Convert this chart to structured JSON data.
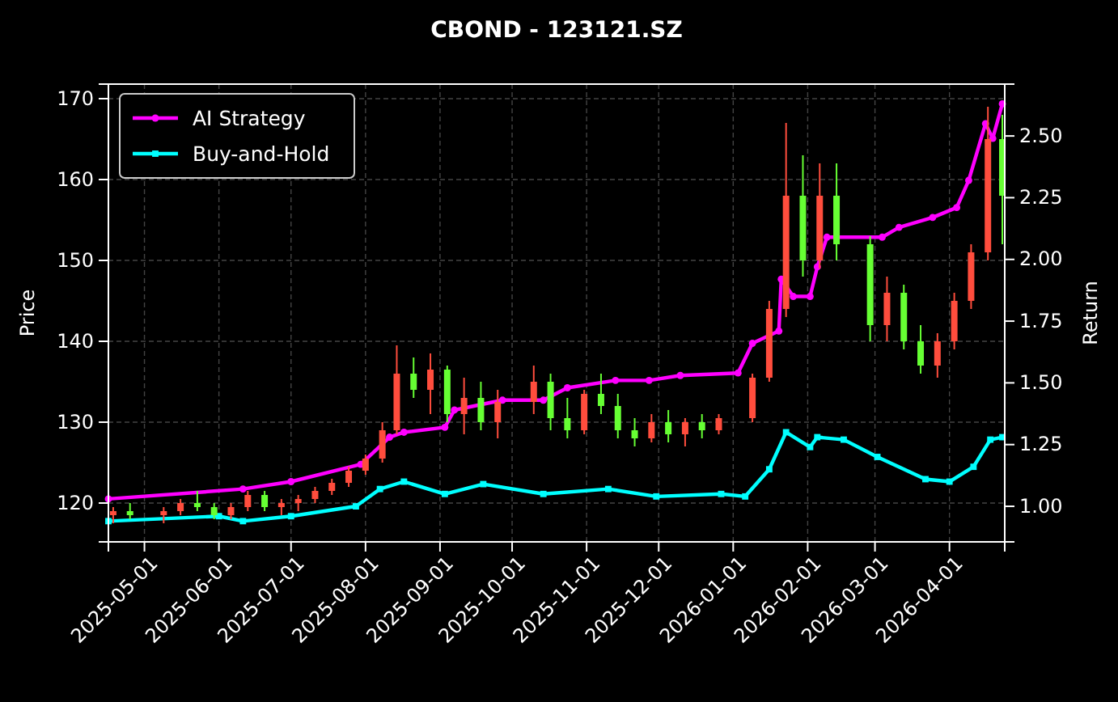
{
  "chart_data": {
    "type": "candlestick",
    "title": "CBOND - 123121.SZ",
    "ylabel": "Price",
    "y2label": "Return",
    "x": [
      "2025-04-18",
      "2025-04-25",
      "2025-05-09",
      "2025-05-16",
      "2025-05-23",
      "2025-05-30",
      "2025-06-06",
      "2025-06-13",
      "2025-06-20",
      "2025-06-27",
      "2025-07-04",
      "2025-07-11",
      "2025-07-18",
      "2025-07-25",
      "2025-08-01",
      "2025-08-08",
      "2025-08-14",
      "2025-08-21",
      "2025-08-28",
      "2025-09-04",
      "2025-09-11",
      "2025-09-18",
      "2025-09-25",
      "2025-10-10",
      "2025-10-17",
      "2025-10-24",
      "2025-10-31",
      "2025-11-07",
      "2025-11-14",
      "2025-11-21",
      "2025-11-28",
      "2025-12-05",
      "2025-12-12",
      "2025-12-19",
      "2025-12-26",
      "2026-01-09",
      "2026-01-16",
      "2026-01-23",
      "2026-01-30",
      "2026-02-06",
      "2026-02-13",
      "2026-02-27",
      "2026-03-06",
      "2026-03-13",
      "2026-03-20",
      "2026-03-27",
      "2026-04-03",
      "2026-04-10",
      "2026-04-17",
      "2026-04-23"
    ],
    "ohlc": [
      [
        118.5,
        119.5,
        117.5,
        119
      ],
      [
        119,
        120,
        118,
        118.5
      ],
      [
        118.5,
        119.5,
        117.5,
        119
      ],
      [
        119,
        120.5,
        118.5,
        120
      ],
      [
        120,
        121.5,
        119,
        119.5
      ],
      [
        119.5,
        120,
        118,
        118.5
      ],
      [
        118.5,
        120,
        118,
        119.5
      ],
      [
        119.5,
        121.5,
        119,
        121
      ],
      [
        121,
        121.5,
        119,
        119.5
      ],
      [
        119.5,
        120.5,
        118.5,
        120
      ],
      [
        120,
        121,
        119,
        120.5
      ],
      [
        120.5,
        122,
        120,
        121.5
      ],
      [
        121.5,
        123,
        121,
        122.5
      ],
      [
        122.5,
        124.5,
        122,
        124
      ],
      [
        124,
        126,
        123.5,
        125.5
      ],
      [
        125.5,
        130,
        125,
        129
      ],
      [
        129,
        139.5,
        128.5,
        136
      ],
      [
        136,
        138,
        133,
        134
      ],
      [
        134,
        138.5,
        131,
        136.5
      ],
      [
        136.5,
        137,
        130,
        131
      ],
      [
        131,
        135.5,
        128.5,
        133
      ],
      [
        133,
        135,
        129,
        130
      ],
      [
        130,
        134,
        128,
        132.5
      ],
      [
        132.5,
        137,
        131,
        135
      ],
      [
        135,
        136,
        129,
        130.5
      ],
      [
        130.5,
        133,
        128,
        129
      ],
      [
        129,
        134,
        128.5,
        133.5
      ],
      [
        133.5,
        136,
        131,
        132
      ],
      [
        132,
        133.5,
        128,
        129
      ],
      [
        129,
        130.5,
        127,
        128
      ],
      [
        128,
        131,
        127.5,
        130
      ],
      [
        130,
        131.5,
        127.5,
        128.5
      ],
      [
        128.5,
        130.5,
        127,
        130
      ],
      [
        130,
        131,
        128,
        129
      ],
      [
        129,
        131,
        128.5,
        130.5
      ],
      [
        130.5,
        136,
        130,
        135.5
      ],
      [
        135.5,
        145,
        135,
        144
      ],
      [
        144,
        167,
        143,
        158
      ],
      [
        158,
        163,
        148,
        150
      ],
      [
        150,
        162,
        149,
        158
      ],
      [
        158,
        162,
        150,
        152
      ],
      [
        152,
        153,
        140,
        142
      ],
      [
        142,
        148,
        140,
        146
      ],
      [
        146,
        147,
        139,
        140
      ],
      [
        140,
        142,
        136,
        137
      ],
      [
        137,
        141,
        135.5,
        140
      ],
      [
        140,
        146,
        139,
        145
      ],
      [
        145,
        152,
        144,
        151
      ],
      [
        151,
        169,
        150,
        165
      ],
      [
        165,
        168,
        152,
        158
      ]
    ],
    "series": [
      {
        "name": "AI Strategy",
        "type": "line",
        "axis": "y2",
        "color": "#ff00ff",
        "marker": "circle",
        "x": [
          "2025-04-16",
          "2025-06-11",
          "2025-07-01",
          "2025-07-30",
          "2025-08-11",
          "2025-08-17",
          "2025-09-03",
          "2025-09-07",
          "2025-09-27",
          "2025-10-14",
          "2025-10-24",
          "2025-11-13",
          "2025-11-27",
          "2025-12-10",
          "2026-01-03",
          "2026-01-09",
          "2026-01-20",
          "2026-01-21",
          "2026-01-26",
          "2026-02-02",
          "2026-02-05",
          "2026-02-09",
          "2026-03-04",
          "2026-03-11",
          "2026-03-25",
          "2026-04-04",
          "2026-04-09",
          "2026-04-16",
          "2026-04-19",
          "2026-04-23"
        ],
        "values": [
          1.03,
          1.07,
          1.1,
          1.17,
          1.28,
          1.3,
          1.32,
          1.39,
          1.43,
          1.43,
          1.48,
          1.51,
          1.51,
          1.53,
          1.54,
          1.66,
          1.71,
          1.92,
          1.85,
          1.85,
          1.97,
          2.09,
          2.09,
          2.13,
          2.17,
          2.21,
          2.32,
          2.55,
          2.49,
          2.63
        ]
      },
      {
        "name": "Buy-and-Hold",
        "type": "line",
        "axis": "y2",
        "color": "#00ffff",
        "marker": "square",
        "x": [
          "2025-04-16",
          "2025-06-01",
          "2025-06-11",
          "2025-07-01",
          "2025-07-28",
          "2025-08-07",
          "2025-08-17",
          "2025-09-03",
          "2025-09-19",
          "2025-10-14",
          "2025-11-10",
          "2025-11-30",
          "2025-12-27",
          "2026-01-06",
          "2026-01-16",
          "2026-01-23",
          "2026-02-02",
          "2026-02-05",
          "2026-02-16",
          "2026-03-02",
          "2026-03-22",
          "2026-04-01",
          "2026-04-11",
          "2026-04-18",
          "2026-04-23"
        ],
        "values": [
          0.94,
          0.96,
          0.94,
          0.96,
          1.0,
          1.07,
          1.1,
          1.05,
          1.09,
          1.05,
          1.07,
          1.04,
          1.05,
          1.04,
          1.15,
          1.3,
          1.24,
          1.28,
          1.27,
          1.2,
          1.11,
          1.1,
          1.16,
          1.27,
          1.28
        ]
      }
    ],
    "xlim": [
      "2025-04-16",
      "2026-04-24"
    ],
    "xticks": [
      {
        "value": "2025-05-01",
        "label": "2025-05-01"
      },
      {
        "value": "2025-06-01",
        "label": "2025-06-01"
      },
      {
        "value": "2025-07-01",
        "label": "2025-07-01"
      },
      {
        "value": "2025-08-01",
        "label": "2025-08-01"
      },
      {
        "value": "2025-09-01",
        "label": "2025-09-01"
      },
      {
        "value": "2025-10-01",
        "label": "2025-10-01"
      },
      {
        "value": "2025-11-01",
        "label": "2025-11-01"
      },
      {
        "value": "2025-12-01",
        "label": "2025-12-01"
      },
      {
        "value": "2026-01-01",
        "label": "2026-01-01"
      },
      {
        "value": "2026-02-01",
        "label": "2026-02-01"
      },
      {
        "value": "2026-03-01",
        "label": "2026-03-01"
      },
      {
        "value": "2026-04-01",
        "label": "2026-04-01"
      }
    ],
    "ylim": [
      115.2,
      171.8
    ],
    "yticks": [
      120,
      130,
      140,
      150,
      160,
      170
    ],
    "y2lim": [
      0.856,
      2.71
    ],
    "y2ticks": [
      {
        "value": 1,
        "label": "1.00"
      },
      {
        "value": 1.25,
        "label": "1.25"
      },
      {
        "value": 1.5,
        "label": "1.50"
      },
      {
        "value": 1.75,
        "label": "1.75"
      },
      {
        "value": 2,
        "label": "2.00"
      },
      {
        "value": 2.25,
        "label": "2.25"
      },
      {
        "value": 2.5,
        "label": "2.50"
      }
    ],
    "grid": true,
    "legend": "top left"
  }
}
